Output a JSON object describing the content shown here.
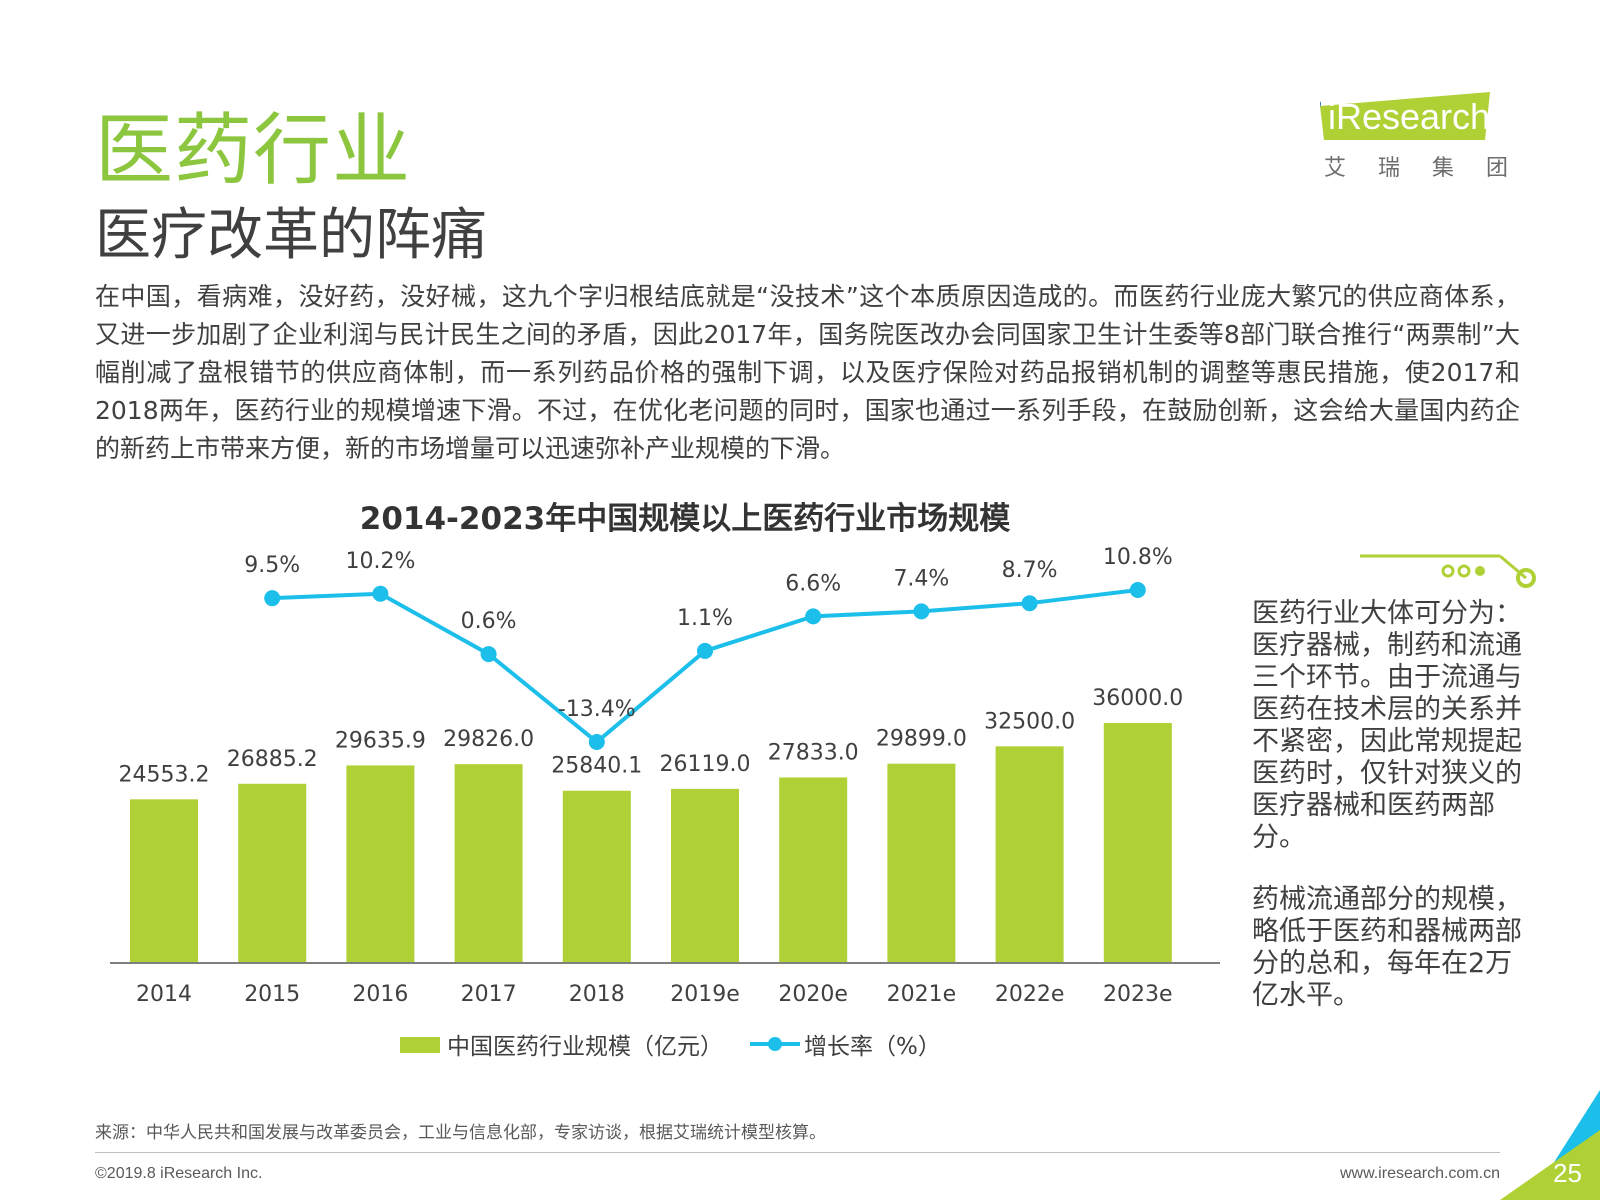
{
  "header": {
    "title": "医药行业",
    "subtitle": "医疗改革的阵痛"
  },
  "logo": {
    "word": "iResearch",
    "chinese": "艾瑞集团"
  },
  "intro": "在中国，看病难，没好药，没好械，这九个字归根结底就是“没技术”这个本质原因造成的。而医药行业庞大繁冗的供应商体系，又进一步加剧了企业利润与民计民生之间的矛盾，因此2017年，国务院医改办会同国家卫生计生委等8部门联合推行“两票制”大幅削减了盘根错节的供应商体制，而一系列药品价格的强制下调，以及医疗保险对药品报销机制的调整等惠民措施，使2017和2018两年，医药行业的规模增速下滑。不过，在优化老问题的同时，国家也通过一系列手段，在鼓励创新，这会给大量国内药企的新药上市带来方便，新的市场增量可以迅速弥补产业规模的下滑。",
  "chart_data": {
    "type": "bar",
    "title": "2014-2023年中国规模以上医药行业市场规模",
    "categories": [
      "2014",
      "2015",
      "2016",
      "2017",
      "2018",
      "2019e",
      "2020e",
      "2021e",
      "2022e",
      "2023e"
    ],
    "series": [
      {
        "name": "中国医药行业规模（亿元）",
        "type": "bar",
        "values": [
          24553.2,
          26885.2,
          29635.9,
          29826.0,
          25840.1,
          26119.0,
          27833.0,
          29899.0,
          32500.0,
          36000.0
        ],
        "labels": [
          "24553.2",
          "26885.2",
          "29635.9",
          "29826.0",
          "25840.1",
          "26119.0",
          "27833.0",
          "29899.0",
          "32500.0",
          "36000.0"
        ],
        "color": "#afd136"
      },
      {
        "name": "增长率（%）",
        "type": "line",
        "values": [
          null,
          9.5,
          10.2,
          0.6,
          -13.4,
          1.1,
          6.6,
          7.4,
          8.7,
          10.8
        ],
        "labels": [
          null,
          "9.5%",
          "10.2%",
          "0.6%",
          "-13.4%",
          "1.1%",
          "6.6%",
          "7.4%",
          "8.7%",
          "10.8%"
        ],
        "color": "#1cbeea"
      }
    ],
    "legend_position": "bottom-center",
    "grid": false
  },
  "sidebar": {
    "paragraphs": [
      "医药行业大体可分为：医疗器械，制药和流通三个环节。由于流通与医药在技术层的关系并不紧密，因此常规提起医药时，仅针对狭义的医疗器械和医药两部分。",
      "药械流通部分的规模，略低于医药和器械两部分的总和，每年在2万亿水平。"
    ]
  },
  "footer": {
    "source": "来源：中华人民共和国发展与改革委员会，工业与信息化部，专家访谈，根据艾瑞统计模型核算。",
    "copyright": "©2019.8 iResearch Inc.",
    "website": "www.iresearch.com.cn",
    "page": "25"
  },
  "colors": {
    "accent_green": "#8cc63f",
    "bar_green": "#afd136",
    "line_blue": "#1cbeea"
  }
}
